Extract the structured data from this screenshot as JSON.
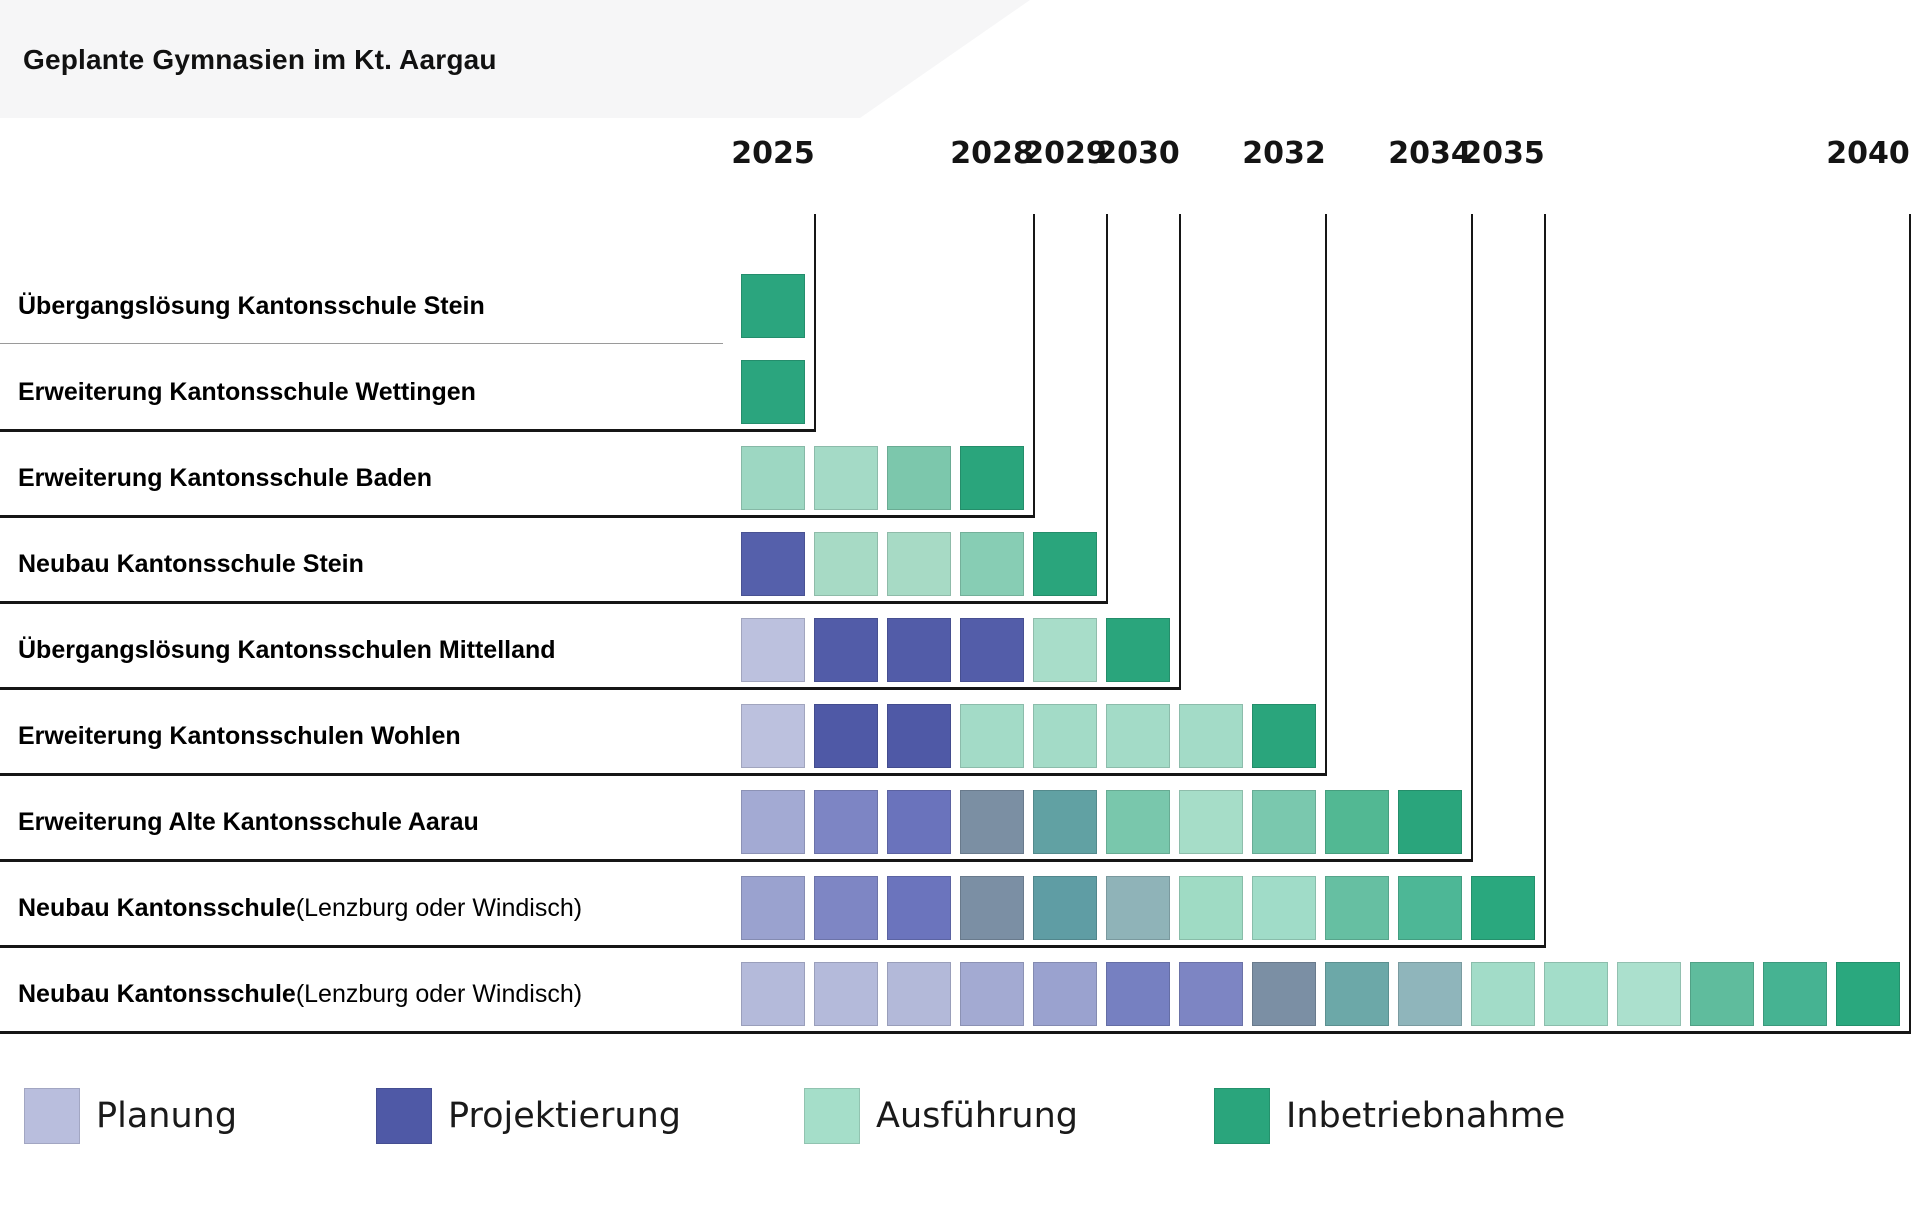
{
  "title": "Geplante Gymnasien im Kt. Aargau",
  "legend": {
    "items": [
      {
        "label": "Planung",
        "color": "#b9bedd"
      },
      {
        "label": "Projektierung",
        "color": "#4f59a6"
      },
      {
        "label": "Ausführung",
        "color": "#a5dec9"
      },
      {
        "label": "Inbetriebnahme",
        "color": "#2aa57c"
      }
    ]
  },
  "colors": {
    "line": "#161616",
    "thin_separator": "#9a9a9a",
    "header_band": "#f6f6f7",
    "planung": "#b9bedd",
    "projektierung": "#4f59a6",
    "ausfuehrung": "#a5dec9",
    "inbetriebnahme": "#2aa57c"
  },
  "chart_data": {
    "type": "gantt",
    "title": "Geplante Gymnasien im Kt. Aargau",
    "x_axis": {
      "unit": "year",
      "min": 2025,
      "max": 2040,
      "ticks": [
        2025,
        2028,
        2029,
        2030,
        2032,
        2034,
        2035,
        2040
      ]
    },
    "phases": [
      "Planung",
      "Projektierung",
      "Ausführung",
      "Inbetriebnahme"
    ],
    "legend_position": "bottom",
    "projects": [
      {
        "label_bold": "Übergangslösung Kantonsschule Stein",
        "label_normal": "",
        "start_year": 2025,
        "end_year": 2025,
        "separator_below": "thin",
        "cells": [
          {
            "year": 2025,
            "phase": "inbetriebnahme",
            "color": "#2ba57e"
          }
        ]
      },
      {
        "label_bold": "Erweiterung Kantonsschule Wettingen",
        "label_normal": "",
        "start_year": 2025,
        "end_year": 2025,
        "separator_below": "black",
        "cells": [
          {
            "year": 2025,
            "phase": "inbetriebnahme",
            "color": "#2ba57e"
          }
        ]
      },
      {
        "label_bold": "Erweiterung Kantonsschule Baden",
        "label_normal": "",
        "start_year": 2025,
        "end_year": 2028,
        "separator_below": "black",
        "cells": [
          {
            "year": 2025,
            "phase": "ausfuehrung",
            "color": "#9dd7c2"
          },
          {
            "year": 2026,
            "phase": "ausfuehrung",
            "color": "#a4dac6"
          },
          {
            "year": 2027,
            "phase": "ausfuehrung",
            "color": "#7cc7ac"
          },
          {
            "year": 2028,
            "phase": "inbetriebnahme",
            "color": "#2aa57c"
          }
        ]
      },
      {
        "label_bold": "Neubau Kantonsschule Stein",
        "label_normal": "",
        "start_year": 2025,
        "end_year": 2029,
        "separator_below": "black",
        "cells": [
          {
            "year": 2025,
            "phase": "projektierung",
            "color": "#5560ab"
          },
          {
            "year": 2026,
            "phase": "ausfuehrung",
            "color": "#a7dac5"
          },
          {
            "year": 2027,
            "phase": "ausfuehrung",
            "color": "#a7dac5"
          },
          {
            "year": 2028,
            "phase": "ausfuehrung",
            "color": "#87cdb4"
          },
          {
            "year": 2029,
            "phase": "inbetriebnahme",
            "color": "#2aa57c"
          }
        ]
      },
      {
        "label_bold": "Übergangslösung Kantonsschulen Mittelland",
        "label_normal": "",
        "start_year": 2025,
        "end_year": 2030,
        "separator_below": "black",
        "cells": [
          {
            "year": 2025,
            "phase": "planung",
            "color": "#bcc1de"
          },
          {
            "year": 2026,
            "phase": "projektierung",
            "color": "#525ca8"
          },
          {
            "year": 2027,
            "phase": "projektierung",
            "color": "#525ca8"
          },
          {
            "year": 2028,
            "phase": "projektierung",
            "color": "#535da9"
          },
          {
            "year": 2029,
            "phase": "ausfuehrung",
            "color": "#a8ddc9"
          },
          {
            "year": 2030,
            "phase": "inbetriebnahme",
            "color": "#2aa57c"
          }
        ]
      },
      {
        "label_bold": "Erweiterung Kantonsschulen Wohlen",
        "label_normal": "",
        "start_year": 2025,
        "end_year": 2032,
        "separator_below": "black",
        "cells": [
          {
            "year": 2025,
            "phase": "planung",
            "color": "#bcc1de"
          },
          {
            "year": 2026,
            "phase": "projektierung",
            "color": "#4f59a6"
          },
          {
            "year": 2027,
            "phase": "projektierung",
            "color": "#4f59a6"
          },
          {
            "year": 2028,
            "phase": "ausfuehrung",
            "color": "#a3dbc7"
          },
          {
            "year": 2029,
            "phase": "ausfuehrung",
            "color": "#a3dbc7"
          },
          {
            "year": 2030,
            "phase": "ausfuehrung",
            "color": "#a3dbc7"
          },
          {
            "year": 2031,
            "phase": "ausfuehrung",
            "color": "#a3dbc7"
          },
          {
            "year": 2032,
            "phase": "inbetriebnahme",
            "color": "#2aa57c"
          }
        ]
      },
      {
        "label_bold": "Erweiterung Alte Kantonsschule Aarau",
        "label_normal": "",
        "start_year": 2025,
        "end_year": 2034,
        "separator_below": "black",
        "cells": [
          {
            "year": 2025,
            "phase": "planung",
            "color": "#a3aad3"
          },
          {
            "year": 2026,
            "phase": "projektierung",
            "color": "#7d85c4"
          },
          {
            "year": 2027,
            "phase": "projektierung",
            "color": "#6a73bc"
          },
          {
            "year": 2028,
            "phase": "transition",
            "color": "#7b8fa3"
          },
          {
            "year": 2029,
            "phase": "transition",
            "color": "#61a1a3"
          },
          {
            "year": 2030,
            "phase": "ausfuehrung",
            "color": "#79c7ac"
          },
          {
            "year": 2031,
            "phase": "ausfuehrung",
            "color": "#a6ddc8"
          },
          {
            "year": 2032,
            "phase": "ausfuehrung",
            "color": "#7ac8ae"
          },
          {
            "year": 2033,
            "phase": "ausfuehrung",
            "color": "#52b893"
          },
          {
            "year": 2034,
            "phase": "inbetriebnahme",
            "color": "#2aa57c"
          }
        ]
      },
      {
        "label_bold": "Neubau Kantonsschule",
        "label_normal": " (Lenzburg oder Windisch)",
        "start_year": 2025,
        "end_year": 2035,
        "separator_below": "black",
        "cells": [
          {
            "year": 2025,
            "phase": "planung",
            "color": "#9aa2cf"
          },
          {
            "year": 2026,
            "phase": "projektierung",
            "color": "#7e86c4"
          },
          {
            "year": 2027,
            "phase": "projektierung",
            "color": "#6b74bd"
          },
          {
            "year": 2028,
            "phase": "transition",
            "color": "#7b8fa4"
          },
          {
            "year": 2029,
            "phase": "transition",
            "color": "#5f9da4"
          },
          {
            "year": 2030,
            "phase": "transition",
            "color": "#8fb3b8"
          },
          {
            "year": 2031,
            "phase": "ausfuehrung",
            "color": "#9fdbc4"
          },
          {
            "year": 2032,
            "phase": "ausfuehrung",
            "color": "#a0dcc8"
          },
          {
            "year": 2033,
            "phase": "ausfuehrung",
            "color": "#66bfa2"
          },
          {
            "year": 2034,
            "phase": "ausfuehrung",
            "color": "#4db796"
          },
          {
            "year": 2035,
            "phase": "inbetriebnahme",
            "color": "#2aa87e"
          }
        ]
      },
      {
        "label_bold": "Neubau Kantonsschule",
        "label_normal": " (Lenzburg oder Windisch)",
        "start_year": 2025,
        "end_year": 2040,
        "separator_below": "black",
        "cells": [
          {
            "year": 2025,
            "phase": "planung",
            "color": "#b4bada"
          },
          {
            "year": 2026,
            "phase": "planung",
            "color": "#b4bada"
          },
          {
            "year": 2027,
            "phase": "planung",
            "color": "#b3b9d9"
          },
          {
            "year": 2028,
            "phase": "planung",
            "color": "#a3aad2"
          },
          {
            "year": 2029,
            "phase": "planung",
            "color": "#9aa2cf"
          },
          {
            "year": 2030,
            "phase": "projektierung",
            "color": "#7680c1"
          },
          {
            "year": 2031,
            "phase": "projektierung",
            "color": "#7d85c3"
          },
          {
            "year": 2032,
            "phase": "transition",
            "color": "#7b8fa4"
          },
          {
            "year": 2033,
            "phase": "transition",
            "color": "#6ca8a8"
          },
          {
            "year": 2034,
            "phase": "transition",
            "color": "#8fb5bb"
          },
          {
            "year": 2035,
            "phase": "ausfuehrung",
            "color": "#a2dcc8"
          },
          {
            "year": 2036,
            "phase": "ausfuehrung",
            "color": "#a3ddc9"
          },
          {
            "year": 2037,
            "phase": "ausfuehrung",
            "color": "#abe0cd"
          },
          {
            "year": 2038,
            "phase": "ausfuehrung",
            "color": "#5fbc9d"
          },
          {
            "year": 2039,
            "phase": "ausfuehrung",
            "color": "#46b392"
          },
          {
            "year": 2040,
            "phase": "inbetriebnahme",
            "color": "#2aa87e"
          }
        ]
      }
    ]
  }
}
